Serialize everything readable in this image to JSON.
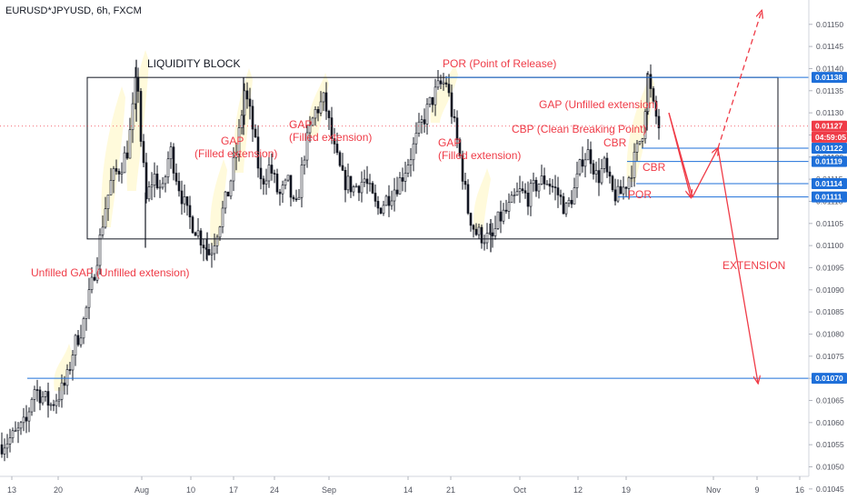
{
  "header": {
    "symbol_line": "EURUSD*JPYUSD, 6h, FXCM"
  },
  "chart_data": {
    "type": "candlestick",
    "title": "EURUSD*JPYUSD, 6h, FXCM",
    "x_ticks": [
      "13",
      "20",
      "Aug",
      "10",
      "17",
      "24",
      "Sep",
      "14",
      "21",
      "Oct",
      "12",
      "19",
      "Nov",
      "9",
      "16"
    ],
    "y_ticks": [
      "0.01150",
      "0.01145",
      "0.01140",
      "0.01135",
      "0.01130",
      "0.01125",
      "0.01120",
      "0.01115",
      "0.01110",
      "0.01105",
      "0.01100",
      "0.01095",
      "0.01090",
      "0.01085",
      "0.01080",
      "0.01075",
      "0.01070",
      "0.01065",
      "0.01060",
      "0.01055",
      "0.01050",
      "0.01045"
    ],
    "ylim": [
      0.010425,
      0.011555
    ],
    "grid": false,
    "price_labels": [
      {
        "text": "0.01138",
        "value": 0.01138,
        "color": "#1e6fd9"
      },
      {
        "text": "0.01127",
        "value": 0.01127,
        "color": "#ef3b47"
      },
      {
        "text": "04:59:05",
        "value": 0.011245,
        "color": "#ef3b47"
      },
      {
        "text": "0.01122",
        "value": 0.01122,
        "color": "#1e6fd9"
      },
      {
        "text": "0.01119",
        "value": 0.01119,
        "color": "#1e6fd9"
      },
      {
        "text": "0.01114",
        "value": 0.01114,
        "color": "#1e6fd9"
      },
      {
        "text": "0.01111",
        "value": 0.01111,
        "color": "#1e6fd9"
      },
      {
        "text": "0.01070",
        "value": 0.0107,
        "color": "#1e6fd9"
      }
    ],
    "horizontal_levels": [
      0.01138,
      0.01122,
      0.01119,
      0.01114,
      0.01111,
      0.0107
    ],
    "current_price": 0.01127,
    "liquidity_block": {
      "top": 0.01138,
      "bottom": 0.011015
    },
    "annotations": [
      {
        "text": "LIQUIDITY BLOCK",
        "color": "#131722"
      },
      {
        "text": "POR (Point of Release)",
        "color": "#ef3b47"
      },
      {
        "text": "GAP (Unfilled extension)",
        "color": "#ef3b47"
      },
      {
        "text": "CBP (Clean Breaking Point)",
        "color": "#ef3b47"
      },
      {
        "text": "GAP",
        "color": "#ef3b47"
      },
      {
        "text": "(Filled extension)",
        "color": "#ef3b47"
      },
      {
        "text": "GAP",
        "color": "#ef3b47"
      },
      {
        "text": "(Filled extension)",
        "color": "#ef3b47"
      },
      {
        "text": "GAP",
        "color": "#ef3b47"
      },
      {
        "text": "(Filled extension)",
        "color": "#ef3b47"
      },
      {
        "text": "CBR",
        "color": "#ef3b47"
      },
      {
        "text": "CBR",
        "color": "#ef3b47"
      },
      {
        "text": "POR",
        "color": "#ef3b47"
      },
      {
        "text": "Unfilled GAP (Unfilled extension)",
        "color": "#ef3b47"
      },
      {
        "text": "EXTENSION",
        "color": "#ef3b47"
      }
    ],
    "price_path": [
      [
        0,
        0.01055
      ],
      [
        15,
        0.01057
      ],
      [
        28,
        0.0106
      ],
      [
        36,
        0.01068
      ],
      [
        45,
        0.01066
      ],
      [
        55,
        0.01064
      ],
      [
        66,
        0.01067
      ],
      [
        72,
        0.01069
      ],
      [
        80,
        0.01077
      ],
      [
        90,
        0.01082
      ],
      [
        100,
        0.01091
      ],
      [
        108,
        0.011
      ],
      [
        114,
        0.01108
      ],
      [
        122,
        0.01115
      ],
      [
        132,
        0.01118
      ],
      [
        140,
        0.01122
      ],
      [
        146,
        0.01132
      ],
      [
        150,
        0.0114
      ],
      [
        154,
        0.01124
      ],
      [
        160,
        0.0111
      ],
      [
        168,
        0.01116
      ],
      [
        178,
        0.01112
      ],
      [
        186,
        0.01122
      ],
      [
        194,
        0.01115
      ],
      [
        205,
        0.01107
      ],
      [
        214,
        0.01104
      ],
      [
        222,
        0.01101
      ],
      [
        230,
        0.01098
      ],
      [
        240,
        0.01105
      ],
      [
        250,
        0.01112
      ],
      [
        260,
        0.01122
      ],
      [
        268,
        0.01135
      ],
      [
        276,
        0.01128
      ],
      [
        286,
        0.01114
      ],
      [
        296,
        0.01118
      ],
      [
        306,
        0.01111
      ],
      [
        316,
        0.01114
      ],
      [
        324,
        0.01107
      ],
      [
        334,
        0.01121
      ],
      [
        345,
        0.0113
      ],
      [
        356,
        0.01133
      ],
      [
        366,
        0.01122
      ],
      [
        376,
        0.01115
      ],
      [
        388,
        0.01113
      ],
      [
        400,
        0.01115
      ],
      [
        414,
        0.01108
      ],
      [
        426,
        0.01111
      ],
      [
        440,
        0.01115
      ],
      [
        452,
        0.01121
      ],
      [
        462,
        0.01127
      ],
      [
        472,
        0.01132
      ],
      [
        482,
        0.01136
      ],
      [
        490,
        0.01137
      ],
      [
        498,
        0.01128
      ],
      [
        506,
        0.01119
      ],
      [
        514,
        0.01108
      ],
      [
        522,
        0.01103
      ],
      [
        532,
        0.01102
      ],
      [
        540,
        0.01101
      ],
      [
        548,
        0.01106
      ],
      [
        558,
        0.01108
      ],
      [
        570,
        0.01112
      ],
      [
        580,
        0.01111
      ],
      [
        590,
        0.01114
      ],
      [
        600,
        0.01115
      ],
      [
        612,
        0.01112
      ],
      [
        622,
        0.01108
      ],
      [
        632,
        0.01113
      ],
      [
        640,
        0.0112
      ],
      [
        648,
        0.01121
      ],
      [
        656,
        0.01115
      ],
      [
        664,
        0.01118
      ],
      [
        672,
        0.01112
      ],
      [
        680,
        0.01111
      ],
      [
        690,
        0.01115
      ],
      [
        698,
        0.0112
      ],
      [
        706,
        0.01126
      ],
      [
        712,
        0.01138
      ],
      [
        718,
        0.01131
      ],
      [
        724,
        0.01127
      ]
    ]
  }
}
